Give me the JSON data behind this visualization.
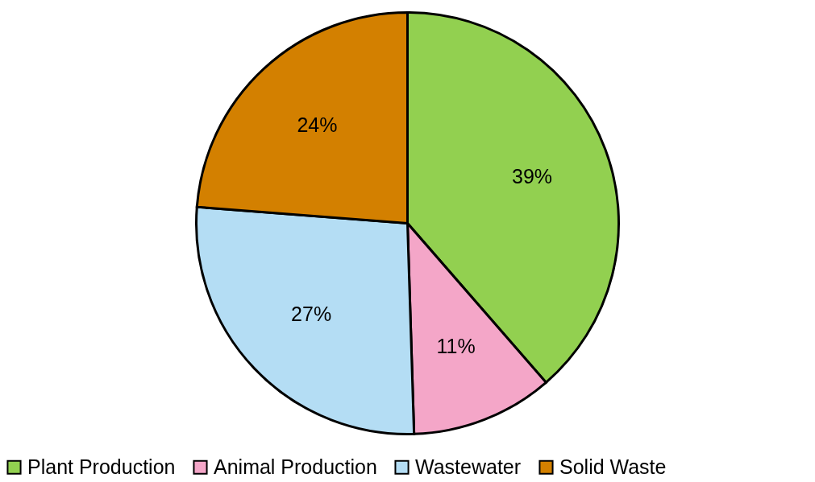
{
  "chart_data": {
    "type": "pie",
    "categories": [
      "Plant Production",
      "Animal Production",
      "Wastewater",
      "Solid Waste"
    ],
    "values": [
      39,
      11,
      27,
      24
    ],
    "colors": [
      "#92d050",
      "#f4a6c8",
      "#b4ddf4",
      "#d38000"
    ],
    "value_labels": [
      "39%",
      "11%",
      "27%",
      "24%"
    ],
    "legend": "bottom"
  }
}
